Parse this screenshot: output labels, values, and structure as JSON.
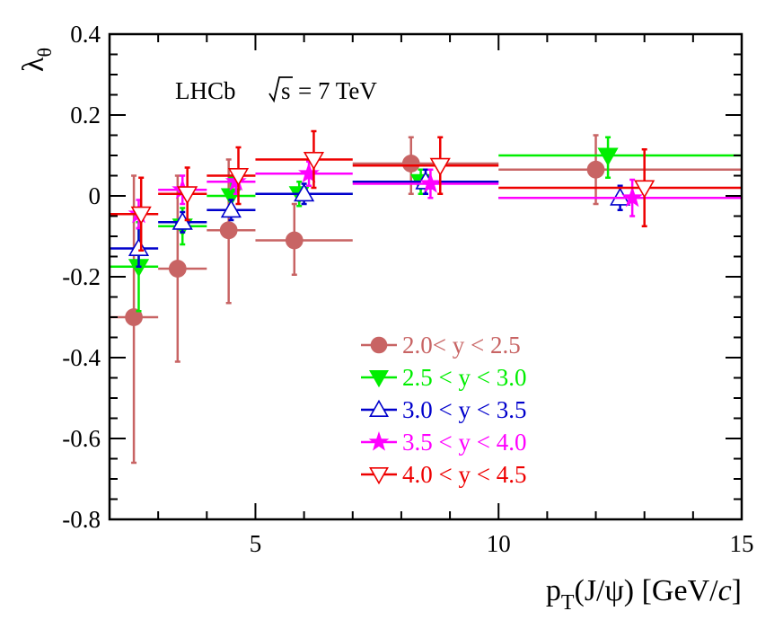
{
  "chart_data": {
    "type": "scatter",
    "title": "",
    "annotation": {
      "experiment": "LHCb",
      "sqrt": "s",
      "energy": "= 7 TeV"
    },
    "xlabel": {
      "pt": "p",
      "sub": "T",
      "rest": "(J/ψ) [GeV/",
      "c": "c",
      "close": "]"
    },
    "ylabel": {
      "main": "λ",
      "sub": "θ"
    },
    "xlim": [
      2,
      15
    ],
    "ylim": [
      -0.8,
      0.4
    ],
    "xticks": [
      5,
      10,
      15
    ],
    "xtick_labels": [
      "5",
      "10",
      "15"
    ],
    "yticks": [
      -0.8,
      -0.6,
      -0.4,
      -0.2,
      0,
      0.2,
      0.4
    ],
    "ytick_labels": [
      "-0.8",
      "-0.6",
      "-0.4",
      "-0.2",
      "0",
      "0.2",
      "0.4"
    ],
    "legend_position": "bottom-right",
    "series": [
      {
        "name": "2.0< y < 2.5",
        "color": "#c86464",
        "marker": "circle",
        "points": [
          {
            "x": 2.5,
            "y": -0.3,
            "xlo": 2.0,
            "xhi": 3.0,
            "ylo": -0.66,
            "yhi": 0.05
          },
          {
            "x": 3.4,
            "y": -0.18,
            "xlo": 3.0,
            "xhi": 4.0,
            "ylo": -0.41,
            "yhi": 0.05
          },
          {
            "x": 4.45,
            "y": -0.085,
            "xlo": 4.0,
            "xhi": 5.0,
            "ylo": -0.265,
            "yhi": 0.09
          },
          {
            "x": 5.8,
            "y": -0.11,
            "xlo": 5.0,
            "xhi": 7.0,
            "ylo": -0.195,
            "yhi": -0.02
          },
          {
            "x": 8.2,
            "y": 0.08,
            "xlo": 7.0,
            "xhi": 10.0,
            "ylo": 0.005,
            "yhi": 0.145
          },
          {
            "x": 12.0,
            "y": 0.065,
            "xlo": 10.0,
            "xhi": 15.0,
            "ylo": -0.02,
            "yhi": 0.15
          }
        ]
      },
      {
        "name": "2.5 < y < 3.0",
        "color": "#00ee00",
        "marker": "triangle-down-filled",
        "points": [
          {
            "x": 2.6,
            "y": -0.175,
            "xlo": 2.0,
            "xhi": 3.0,
            "ylo": -0.285,
            "yhi": -0.065
          },
          {
            "x": 3.5,
            "y": -0.075,
            "xlo": 3.0,
            "xhi": 4.0,
            "ylo": -0.12,
            "yhi": -0.03
          },
          {
            "x": 4.5,
            "y": 0.0,
            "xlo": 4.0,
            "xhi": 5.0,
            "ylo": -0.045,
            "yhi": 0.045
          },
          {
            "x": 5.9,
            "y": 0.005,
            "xlo": 5.0,
            "xhi": 7.0,
            "ylo": -0.025,
            "yhi": 0.035
          },
          {
            "x": 8.4,
            "y": 0.035,
            "xlo": 7.0,
            "xhi": 10.0,
            "ylo": 0.005,
            "yhi": 0.065
          },
          {
            "x": 12.25,
            "y": 0.1,
            "xlo": 10.0,
            "xhi": 15.0,
            "ylo": 0.045,
            "yhi": 0.145
          }
        ]
      },
      {
        "name": "3.0 < y < 3.5",
        "color": "#0000cc",
        "marker": "triangle-up-open",
        "points": [
          {
            "x": 2.6,
            "y": -0.13,
            "xlo": 2.0,
            "xhi": 3.0,
            "ylo": -0.175,
            "yhi": -0.08
          },
          {
            "x": 3.5,
            "y": -0.065,
            "xlo": 3.0,
            "xhi": 4.0,
            "ylo": -0.09,
            "yhi": -0.04
          },
          {
            "x": 4.5,
            "y": -0.035,
            "xlo": 4.0,
            "xhi": 5.0,
            "ylo": -0.06,
            "yhi": -0.01
          },
          {
            "x": 6.0,
            "y": 0.005,
            "xlo": 5.0,
            "xhi": 7.0,
            "ylo": -0.02,
            "yhi": 0.03
          },
          {
            "x": 8.5,
            "y": 0.035,
            "xlo": 7.0,
            "xhi": 10.0,
            "ylo": 0.005,
            "yhi": 0.065
          },
          {
            "x": 12.5,
            "y": -0.005,
            "xlo": 10.0,
            "xhi": 15.0,
            "ylo": -0.035,
            "yhi": 0.025
          }
        ]
      },
      {
        "name": "3.5 < y < 4.0",
        "color": "#ff00ff",
        "marker": "star",
        "points": [
          {
            "x": 2.6,
            "y": -0.045,
            "xlo": 2.0,
            "xhi": 3.0,
            "ylo": -0.08,
            "yhi": -0.01
          },
          {
            "x": 3.5,
            "y": 0.015,
            "xlo": 3.0,
            "xhi": 4.0,
            "ylo": -0.02,
            "yhi": 0.05
          },
          {
            "x": 4.6,
            "y": 0.035,
            "xlo": 4.0,
            "xhi": 5.0,
            "ylo": 0.005,
            "yhi": 0.065
          },
          {
            "x": 6.1,
            "y": 0.055,
            "xlo": 5.0,
            "xhi": 7.0,
            "ylo": 0.025,
            "yhi": 0.085
          },
          {
            "x": 8.6,
            "y": 0.03,
            "xlo": 7.0,
            "xhi": 10.0,
            "ylo": -0.005,
            "yhi": 0.065
          },
          {
            "x": 12.75,
            "y": -0.005,
            "xlo": 10.0,
            "xhi": 15.0,
            "ylo": -0.05,
            "yhi": 0.04
          }
        ]
      },
      {
        "name": "4.0 < y < 4.5",
        "color": "#ee0000",
        "marker": "triangle-down-open",
        "points": [
          {
            "x": 2.65,
            "y": -0.045,
            "xlo": 2.0,
            "xhi": 3.0,
            "ylo": -0.135,
            "yhi": 0.045
          },
          {
            "x": 3.6,
            "y": 0.005,
            "xlo": 3.0,
            "xhi": 4.0,
            "ylo": -0.06,
            "yhi": 0.07
          },
          {
            "x": 4.65,
            "y": 0.05,
            "xlo": 4.0,
            "xhi": 5.0,
            "ylo": -0.02,
            "yhi": 0.12
          },
          {
            "x": 6.2,
            "y": 0.09,
            "xlo": 5.0,
            "xhi": 7.0,
            "ylo": 0.02,
            "yhi": 0.16
          },
          {
            "x": 8.8,
            "y": 0.075,
            "xlo": 7.0,
            "xhi": 10.0,
            "ylo": 0.005,
            "yhi": 0.145
          },
          {
            "x": 13.0,
            "y": 0.02,
            "xlo": 10.0,
            "xhi": 15.0,
            "ylo": -0.075,
            "yhi": 0.115
          }
        ]
      }
    ]
  }
}
